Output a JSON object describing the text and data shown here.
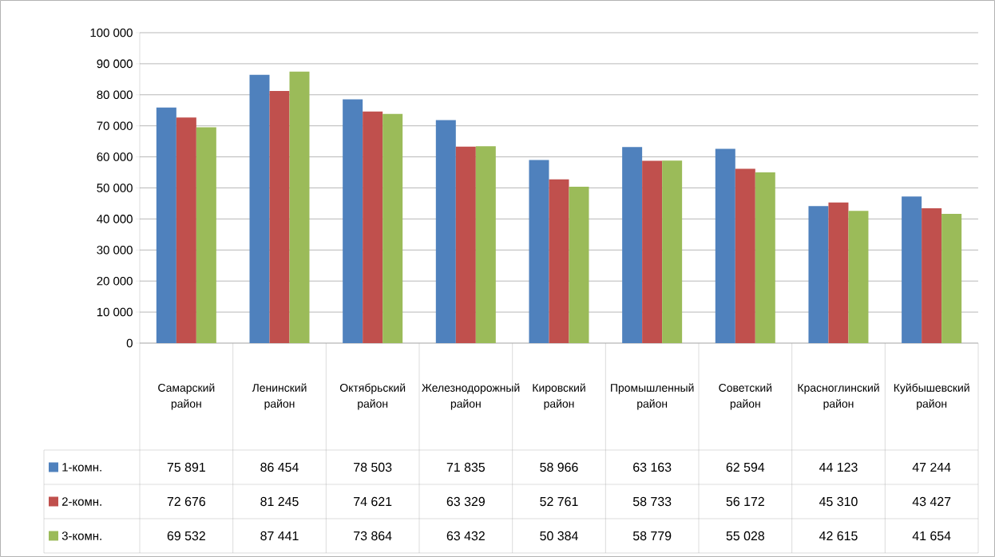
{
  "chart_data": {
    "type": "bar",
    "categories": [
      "Самарский район",
      "Ленинский район",
      "Октябрьский район",
      "Железнодорожный район",
      "Кировский район",
      "Промышленный район",
      "Советский район",
      "Красноглинский район",
      "Куйбышевский район"
    ],
    "series": [
      {
        "name": "1-комн.",
        "color": "#4f81bd",
        "values": [
          75891,
          86454,
          78503,
          71835,
          58966,
          63163,
          62594,
          44123,
          47244
        ],
        "value_labels": [
          "75 891",
          "86 454",
          "78 503",
          "71 835",
          "58 966",
          "63 163",
          "62 594",
          "44 123",
          "47 244"
        ]
      },
      {
        "name": "2-комн.",
        "color": "#c0504d",
        "values": [
          72676,
          81245,
          74621,
          63329,
          52761,
          58733,
          56172,
          45310,
          43427
        ],
        "value_labels": [
          "72 676",
          "81 245",
          "74 621",
          "63 329",
          "52 761",
          "58 733",
          "56 172",
          "45 310",
          "43 427"
        ]
      },
      {
        "name": "3-комн.",
        "color": "#9bbb59",
        "values": [
          69532,
          87441,
          73864,
          63432,
          50384,
          58779,
          55028,
          42615,
          41654
        ],
        "value_labels": [
          "69 532",
          "87 441",
          "73 864",
          "63 432",
          "50 384",
          "58 779",
          "55 028",
          "42 615",
          "41 654"
        ]
      }
    ],
    "ylim": [
      0,
      100000
    ],
    "yticks": [
      {
        "value": 0,
        "label": "0"
      },
      {
        "value": 10000,
        "label": "10 000"
      },
      {
        "value": 20000,
        "label": "20 000"
      },
      {
        "value": 30000,
        "label": "30 000"
      },
      {
        "value": 40000,
        "label": "40 000"
      },
      {
        "value": 50000,
        "label": "50 000"
      },
      {
        "value": 60000,
        "label": "60 000"
      },
      {
        "value": 70000,
        "label": "70 000"
      },
      {
        "value": 80000,
        "label": "80 000"
      },
      {
        "value": 90000,
        "label": "90 000"
      },
      {
        "value": 100000,
        "label": "100 000"
      }
    ],
    "grid": "y",
    "legend": "bottom left"
  }
}
